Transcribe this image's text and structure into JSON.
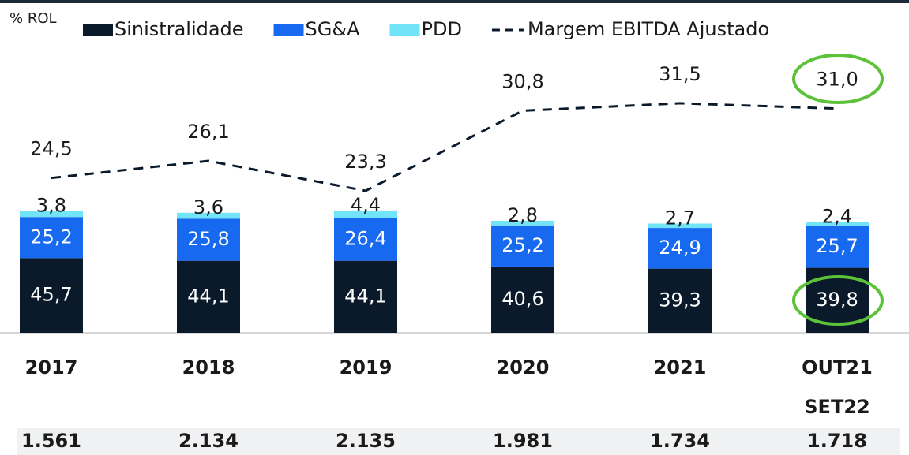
{
  "chart_data": {
    "type": "stacked-bar-line",
    "axis_label": "% ROL",
    "categories": [
      "2017",
      "2018",
      "2019",
      "2020",
      "2021",
      "OUT21\nSET22"
    ],
    "series": [
      {
        "name": "Sinistralidade",
        "color": "#0b1a2b",
        "values": [
          45.7,
          44.1,
          44.1,
          40.6,
          39.3,
          39.8
        ],
        "value_labels": [
          "45,7",
          "44,1",
          "44,1",
          "40,6",
          "39,3",
          "39,8"
        ]
      },
      {
        "name": "SG&A",
        "color": "#1769f0",
        "values": [
          25.2,
          25.8,
          26.4,
          25.2,
          24.9,
          25.7
        ],
        "value_labels": [
          "25,2",
          "25,8",
          "26,4",
          "25,2",
          "24,9",
          "25,7"
        ]
      },
      {
        "name": "PDD",
        "color": "#72e4f8",
        "values": [
          3.8,
          3.6,
          4.4,
          2.8,
          2.7,
          2.4
        ],
        "value_labels": [
          "3,8",
          "3,6",
          "4,4",
          "2,8",
          "2,7",
          "2,4"
        ]
      },
      {
        "name": "Margem EBITDA Ajustado",
        "type": "line",
        "axis": "y2",
        "color": "#0b1a2b",
        "values": [
          24.5,
          26.1,
          23.3,
          30.8,
          31.5,
          31.0
        ],
        "value_labels": [
          "24,5",
          "26,1",
          "23,3",
          "30,8",
          "31,5",
          "31,0"
        ]
      }
    ],
    "ylim": [
      0,
      170
    ],
    "y2lim": [
      10,
      36
    ],
    "footer_row": [
      "1.561",
      "2.134",
      "2.135",
      "1.981",
      "1.734",
      "1.718"
    ]
  }
}
